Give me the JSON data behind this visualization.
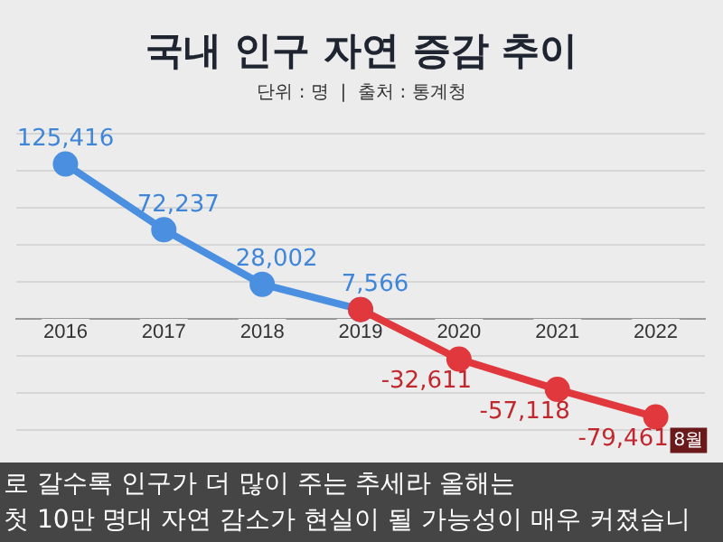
{
  "chart_data": {
    "type": "line",
    "title": "국내 인구 자연 증감 추이",
    "subtitle": "단위 : 명  |  출처 : 통계청",
    "categories": [
      "2016",
      "2017",
      "2018",
      "2019",
      "2020",
      "2021",
      "2022"
    ],
    "series": [
      {
        "color": "#4a8fe0",
        "values": [
          125416,
          72237,
          28002,
          7566,
          null,
          null,
          null
        ],
        "value_labels": [
          "125,416",
          "72,237",
          "28,002",
          "7,566",
          null,
          null,
          null
        ]
      },
      {
        "color": "#e0383c",
        "values": [
          null,
          null,
          null,
          7566,
          -32611,
          -57118,
          -79461
        ],
        "value_labels": [
          null,
          null,
          null,
          null,
          "-32,611",
          "-57,118",
          "-79,461"
        ]
      }
    ],
    "ylim": [
      -90000,
      150000
    ],
    "yticks": [
      {
        "value": -90000,
        "label": null
      },
      {
        "value": -60000,
        "label": null
      },
      {
        "value": -30000,
        "label": null
      },
      {
        "value": 0,
        "label": null
      },
      {
        "value": 30000,
        "label": null
      },
      {
        "value": 60000,
        "label": null
      },
      {
        "value": 90000,
        "label": null
      },
      {
        "value": 120000,
        "label": null
      },
      {
        "value": 150000,
        "label": null
      }
    ],
    "grid": "y",
    "marker": "circle",
    "line_style": "solid",
    "legend": false,
    "tick_labels": "x",
    "annotations": [
      {
        "text": "8월",
        "x": "2022",
        "y": -79461
      },
      "로 갈수록 인구가 더 많이 주는 추세라 올해는",
      "첫 10만 명대 자연 감소가 현실이 될 가능성이 매우 커졌습니"
    ]
  }
}
